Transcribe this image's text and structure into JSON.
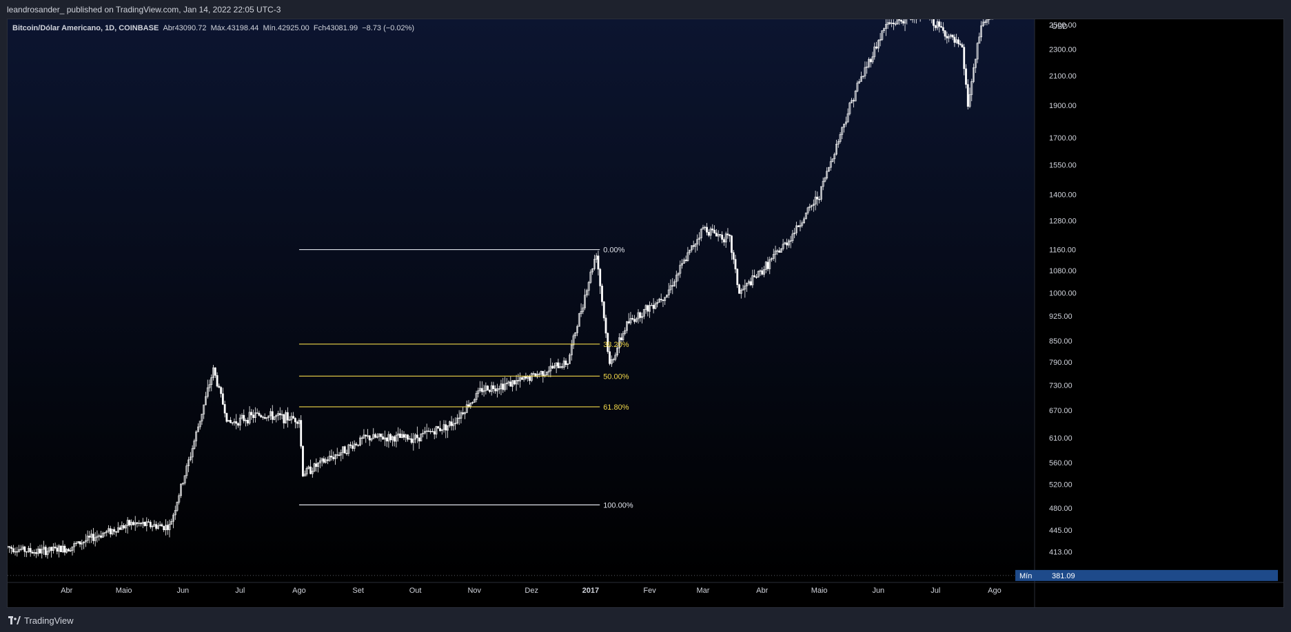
{
  "header": {
    "publish_line": "leandrosander_ published on TradingView.com, Jan 14, 2022 22:05 UTC-3"
  },
  "legend": {
    "symbol": "Bitcoin/Dólar Americano, 1D, COINBASE",
    "open_label": "Abr",
    "open_value": "43090.72",
    "high_label": "Máx.",
    "high_value": "43198.44",
    "low_label": "Mín.",
    "low_value": "42925.00",
    "close_label": "Fch",
    "close_value": "43081.99",
    "change": "−8.73 (−0.02%)"
  },
  "footer": {
    "brand": "TradingView"
  },
  "colors": {
    "candle": "#ffffff",
    "fib_yellow": "#f2d94a",
    "fib_white": "#e0e3eb",
    "axis_text": "#d1d4dc",
    "min_badge": "#1e4a8a"
  },
  "chart_data": {
    "type": "candlestick",
    "title": "",
    "currency": "USD",
    "price_scale": "log",
    "y_ticks": [
      "413.00",
      "445.00",
      "480.00",
      "520.00",
      "560.00",
      "610.00",
      "670.00",
      "730.00",
      "790.00",
      "850.00",
      "925.00",
      "1000.00",
      "1080.00",
      "1160.00",
      "1280.00",
      "1400.00",
      "1550.00",
      "1700.00",
      "1900.00",
      "2100.00",
      "2300.00",
      "2500.00"
    ],
    "x_ticks": [
      "Abr",
      "Maio",
      "Jun",
      "Jul",
      "Ago",
      "Set",
      "Out",
      "Nov",
      "Dez",
      "2017",
      "Fev",
      "Mar",
      "Abr",
      "Maio",
      "Jun",
      "Jul",
      "Ago"
    ],
    "min_marker": {
      "label": "Mín",
      "value": "381.09"
    },
    "price_path": [
      [
        "2016-03-01",
        420
      ],
      [
        "2016-03-15",
        413
      ],
      [
        "2016-04-01",
        418
      ],
      [
        "2016-04-20",
        440
      ],
      [
        "2016-05-05",
        455
      ],
      [
        "2016-05-25",
        450
      ],
      [
        "2016-06-05",
        575
      ],
      [
        "2016-06-17",
        770
      ],
      [
        "2016-06-25",
        640
      ],
      [
        "2016-07-10",
        660
      ],
      [
        "2016-08-01",
        650
      ],
      [
        "2016-08-03",
        540
      ],
      [
        "2016-08-20",
        575
      ],
      [
        "2016-09-05",
        610
      ],
      [
        "2016-10-01",
        610
      ],
      [
        "2016-10-20",
        640
      ],
      [
        "2016-11-05",
        720
      ],
      [
        "2016-11-25",
        740
      ],
      [
        "2016-12-10",
        770
      ],
      [
        "2016-12-20",
        790
      ],
      [
        "2016-12-25",
        900
      ],
      [
        "2017-01-04",
        1150
      ],
      [
        "2017-01-11",
        780
      ],
      [
        "2017-01-20",
        900
      ],
      [
        "2017-02-10",
        1000
      ],
      [
        "2017-03-01",
        1250
      ],
      [
        "2017-03-15",
        1200
      ],
      [
        "2017-03-20",
        1000
      ],
      [
        "2017-04-01",
        1080
      ],
      [
        "2017-04-15",
        1200
      ],
      [
        "2017-05-01",
        1400
      ],
      [
        "2017-05-20",
        2000
      ],
      [
        "2017-06-05",
        2500
      ],
      [
        "2017-06-25",
        2600
      ],
      [
        "2017-07-15",
        2300
      ],
      [
        "2017-07-18",
        1900
      ],
      [
        "2017-07-25",
        2500
      ],
      [
        "2017-08-01",
        2600
      ]
    ],
    "fib_retracement": {
      "top_price": 1160,
      "bottom_price": 485,
      "levels": [
        {
          "label": "0.00%",
          "price": 1160,
          "color": "white"
        },
        {
          "label": "38.20%",
          "price": 840,
          "color": "yellow"
        },
        {
          "label": "50.00%",
          "price": 753,
          "color": "yellow"
        },
        {
          "label": "61.80%",
          "price": 678,
          "color": "yellow"
        },
        {
          "label": "100.00%",
          "price": 485,
          "color": "white"
        }
      ]
    }
  }
}
